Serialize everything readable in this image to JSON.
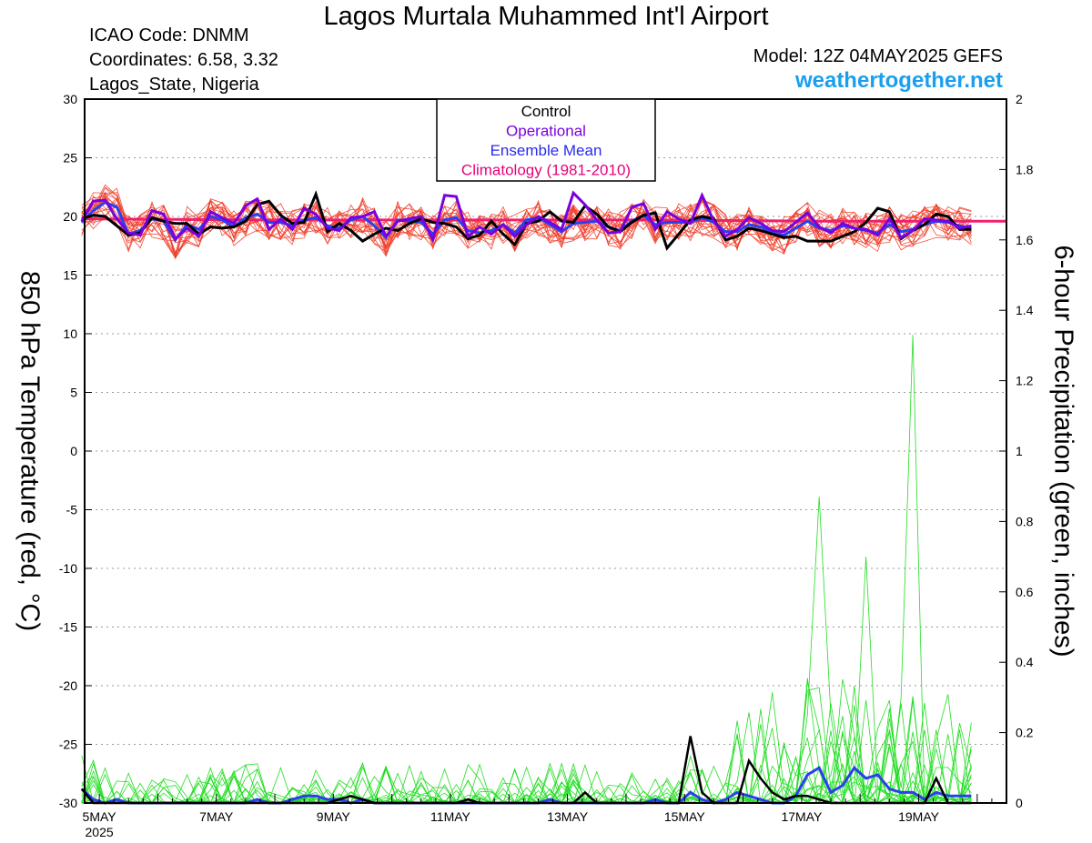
{
  "header": {
    "title": "Lagos Murtala Muhammed Int'l Airport",
    "icao": "ICAO Code: DNMM",
    "coords": "Coordinates: 6.58, 3.32",
    "region": "Lagos_State, Nigeria",
    "model": "Model: 12Z 04MAY2025 GEFS",
    "site": "weathertogether.net"
  },
  "chart_data": {
    "type": "line",
    "ylabel": "850 hPa Temperature (red, °C)",
    "y2label": "6-hour Precipitation (green, inches)",
    "ylim": [
      -30,
      30
    ],
    "y2lim": [
      0,
      2
    ],
    "yticks": [
      "30",
      "25",
      "20",
      "15",
      "10",
      "5",
      "0",
      "-5",
      "-10",
      "-15",
      "-20",
      "-25",
      "-30"
    ],
    "y2ticks": [
      "2",
      "1.8",
      "1.6",
      "1.4",
      "1.2",
      "1",
      "0.8",
      "0.6",
      "0.4",
      "0.2",
      "0"
    ],
    "xlabels": [
      {
        "label": "5MAY",
        "sub": "2025",
        "day": 5.0
      },
      {
        "label": "7MAY",
        "day": 7.0
      },
      {
        "label": "9MAY",
        "day": 9.0
      },
      {
        "label": "11MAY",
        "day": 11.0
      },
      {
        "label": "13MAY",
        "day": 13.0
      },
      {
        "label": "15MAY",
        "day": 15.0
      },
      {
        "label": "17MAY",
        "day": 17.0
      },
      {
        "label": "19MAY",
        "day": 19.0
      }
    ],
    "xlim": [
      4.75,
      20.5
    ],
    "grid": true,
    "legend_position": "top-center",
    "legend": [
      {
        "label": "Control",
        "color": "#000000"
      },
      {
        "label": "Operational",
        "color": "#7a00e0"
      },
      {
        "label": "Ensemble Mean",
        "color": "#2a2aee"
      },
      {
        "label": "Climatology (1981-2010)",
        "color": "#e8007a"
      }
    ],
    "colors": {
      "members_temp": "#f03c28",
      "members_precip": "#22dd22",
      "control": "#000000",
      "operational": "#7a00e0",
      "mean": "#2a40ee",
      "climatology": "#f0206e"
    },
    "climatology_temp": [
      19.8,
      19.7,
      19.7,
      19.7,
      19.6,
      19.6
    ],
    "control_temp": [
      19.8,
      20.1,
      20.0,
      19.2,
      18.4,
      18.6,
      19.9,
      19.6,
      19.4,
      19.4,
      18.5,
      19.1,
      19.0,
      19.1,
      19.6,
      21.0,
      21.3,
      20.1,
      19.4,
      19.5,
      21.9,
      18.7,
      19.4,
      18.8,
      17.9,
      18.5,
      19.0,
      18.8,
      19.4,
      19.8,
      19.5,
      19.4,
      19.1,
      18.1,
      18.4,
      19.6,
      18.5,
      17.6,
      19.4,
      19.6,
      20.4,
      19.6,
      19.5,
      20.9,
      20.2,
      19.1,
      18.7,
      19.5,
      20.1,
      20.3,
      17.3,
      18.5,
      19.7,
      20.0,
      19.8,
      18.0,
      18.3,
      19.0,
      18.8,
      18.5,
      18.2,
      18.3,
      17.9,
      17.9,
      17.9,
      18.3,
      18.7,
      19.5,
      20.7,
      20.4,
      18.1,
      18.8,
      19.3,
      20.2,
      20.0,
      18.9,
      18.9
    ],
    "operational_temp": [
      19.6,
      21.3,
      21.4,
      19.8,
      18.6,
      18.4,
      20.5,
      20.2,
      18.1,
      19.0,
      18.3,
      20.4,
      19.9,
      19.4,
      20.9,
      21.5,
      18.9,
      19.8,
      18.9,
      20.7,
      20.2,
      19.0,
      18.8,
      19.9,
      20.0,
      20.4,
      18.3,
      19.6,
      19.8,
      20.0,
      18.0,
      21.8,
      21.7,
      18.3,
      19.1,
      18.5,
      19.3,
      18.3,
      19.3,
      20.0,
      19.5,
      18.9,
      22.0,
      21.0,
      19.7,
      18.6,
      18.7,
      20.8,
      21.1,
      18.9,
      20.4,
      19.8,
      19.4,
      21.8,
      19.6,
      18.3,
      18.9,
      19.9,
      19.4,
      18.8,
      18.7,
      19.5,
      20.3,
      19.1,
      18.6,
      19.4,
      19.0,
      18.9,
      18.4,
      19.8,
      18.2,
      18.8,
      19.8,
      19.7,
      19.6,
      19.0,
      19.2
    ],
    "mean_temp": [
      19.5,
      20.5,
      21.2,
      20.8,
      18.5,
      18.8,
      19.8,
      19.6,
      18.0,
      19.3,
      18.9,
      20.0,
      19.7,
      19.1,
      19.9,
      20.2,
      19.5,
      19.5,
      19.2,
      19.7,
      19.9,
      19.2,
      19.0,
      19.7,
      20.0,
      19.2,
      18.2,
      19.7,
      19.6,
      19.5,
      18.5,
      19.7,
      19.9,
      18.8,
      18.6,
      18.8,
      19.3,
      18.6,
      19.7,
      19.9,
      19.3,
      18.7,
      19.4,
      19.5,
      19.6,
      19.1,
      18.8,
      19.6,
      20.1,
      19.3,
      19.5,
      19.5,
      19.5,
      19.9,
      19.5,
      18.7,
      18.7,
      19.3,
      19.1,
      18.6,
      18.4,
      19.0,
      19.6,
      19.0,
      18.8,
      19.2,
      19.0,
      18.8,
      18.6,
      19.3,
      18.7,
      18.9,
      19.3,
      19.6,
      19.5,
      19.2,
      19.0
    ],
    "control_precip": [
      0.04,
      0.0,
      0.0,
      0.0,
      0.0,
      0.0,
      0.0,
      0.0,
      0.0,
      0.0,
      0.0,
      0.0,
      0.0,
      0.0,
      0.0,
      0.0,
      0.0,
      0.0,
      0.0,
      0.0,
      0.0,
      0.0,
      0.01,
      0.02,
      0.01,
      0.0,
      0.0,
      0.0,
      0.0,
      0.0,
      0.0,
      0.0,
      0.0,
      0.01,
      0.0,
      0.0,
      0.0,
      0.0,
      0.0,
      0.0,
      0.0,
      0.0,
      0.0,
      0.03,
      0.0,
      0.0,
      0.0,
      0.0,
      0.0,
      0.0,
      0.0,
      0.0,
      0.19,
      0.03,
      0.0,
      0.0,
      0.0,
      0.12,
      0.07,
      0.03,
      0.01,
      0.02,
      0.02,
      0.01,
      0.0,
      0.0,
      0.0,
      0.0,
      0.0,
      0.0,
      0.0,
      0.0,
      0.0,
      0.07,
      0.0,
      0.0,
      0.0
    ],
    "mean_precip": [
      0.04,
      0.01,
      0.0,
      0.01,
      0.0,
      0.0,
      0.0,
      0.0,
      0.0,
      0.0,
      0.0,
      0.0,
      0.0,
      0.0,
      0.0,
      0.01,
      0.0,
      0.0,
      0.01,
      0.02,
      0.02,
      0.01,
      0.01,
      0.0,
      0.01,
      0.0,
      0.0,
      0.0,
      0.0,
      0.0,
      0.0,
      0.0,
      0.0,
      0.0,
      0.0,
      0.0,
      0.0,
      0.0,
      0.0,
      0.0,
      0.01,
      0.0,
      0.0,
      0.0,
      0.0,
      0.0,
      0.0,
      0.0,
      0.0,
      0.01,
      0.0,
      0.0,
      0.03,
      0.01,
      0.0,
      0.01,
      0.03,
      0.02,
      0.01,
      0.0,
      0.0,
      0.02,
      0.08,
      0.1,
      0.03,
      0.05,
      0.1,
      0.07,
      0.08,
      0.04,
      0.03,
      0.03,
      0.01,
      0.03,
      0.02,
      0.02,
      0.02
    ]
  }
}
